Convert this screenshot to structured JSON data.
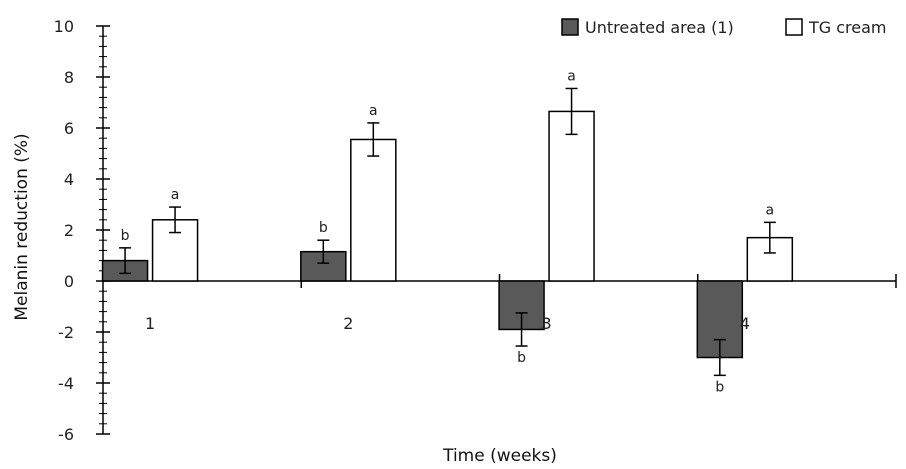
{
  "chart_data": {
    "type": "bar",
    "categories": [
      "1",
      "2",
      "3",
      "4"
    ],
    "series": [
      {
        "name": "Untreated area (1)",
        "color": "#595959",
        "values": [
          0.8,
          1.15,
          -1.9,
          -3.0
        ],
        "errors": [
          0.5,
          0.45,
          0.65,
          0.7
        ],
        "letters": [
          "b",
          "b",
          "b",
          "b"
        ]
      },
      {
        "name": "TG cream",
        "color": "#ffffff",
        "values": [
          2.4,
          5.55,
          6.65,
          1.7
        ],
        "errors": [
          0.5,
          0.65,
          0.9,
          0.6
        ],
        "letters": [
          "a",
          "a",
          "a",
          "a"
        ]
      }
    ],
    "xlabel": "Time (weeks)",
    "ylabel": "Melanin reduction (%)",
    "ylim": [
      -6,
      10
    ],
    "yticks": [
      -6,
      -4,
      -2,
      0,
      2,
      4,
      6,
      8,
      10
    ],
    "grid": false,
    "legend_position": "top-right"
  }
}
